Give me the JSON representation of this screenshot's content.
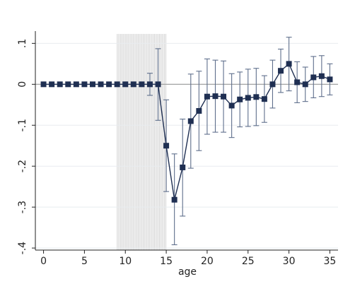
{
  "chart_data": {
    "type": "line",
    "xlabel": "age",
    "ylabel": "",
    "xlim": [
      -1,
      36
    ],
    "ylim": [
      -0.405,
      0.13
    ],
    "x_ticks": [
      0,
      5,
      10,
      15,
      20,
      25,
      30,
      35
    ],
    "x_tick_labels": [
      "0",
      "5",
      "10",
      "15",
      "20",
      "25",
      "30",
      "35"
    ],
    "y_ticks": [
      -0.4,
      -0.3,
      -0.2,
      -0.1,
      0,
      0.1
    ],
    "y_tick_labels": [
      "-.4",
      "-.3",
      "-.2",
      "-.1",
      "0",
      ".1"
    ],
    "grid": "horizontal",
    "reference_line_y": 0,
    "shaded_region": {
      "x_start": 9,
      "x_end": 15
    },
    "series": [
      {
        "marker": "square",
        "color": "#1f2f52",
        "points": [
          {
            "x": 0,
            "y": 0
          },
          {
            "x": 1,
            "y": 0
          },
          {
            "x": 2,
            "y": 0
          },
          {
            "x": 3,
            "y": 0
          },
          {
            "x": 4,
            "y": 0
          },
          {
            "x": 5,
            "y": 0
          },
          {
            "x": 6,
            "y": 0
          },
          {
            "x": 7,
            "y": 0
          },
          {
            "x": 8,
            "y": 0
          },
          {
            "x": 9,
            "y": 0
          },
          {
            "x": 10,
            "y": 0
          },
          {
            "x": 11,
            "y": 0
          },
          {
            "x": 12,
            "y": 0
          },
          {
            "x": 13,
            "y": 0,
            "lo": -0.027,
            "hi": 0.027
          },
          {
            "x": 14,
            "y": 0,
            "lo": -0.088,
            "hi": 0.087
          },
          {
            "x": 15,
            "y": -0.15,
            "lo": -0.262,
            "hi": -0.038
          },
          {
            "x": 16,
            "y": -0.282,
            "lo": -0.392,
            "hi": -0.17
          },
          {
            "x": 17,
            "y": -0.203,
            "lo": -0.322,
            "hi": -0.085
          },
          {
            "x": 18,
            "y": -0.09,
            "lo": -0.205,
            "hi": 0.025
          },
          {
            "x": 19,
            "y": -0.065,
            "lo": -0.162,
            "hi": 0.032
          },
          {
            "x": 20,
            "y": -0.03,
            "lo": -0.122,
            "hi": 0.062
          },
          {
            "x": 21,
            "y": -0.029,
            "lo": -0.117,
            "hi": 0.059
          },
          {
            "x": 22,
            "y": -0.03,
            "lo": -0.117,
            "hi": 0.057
          },
          {
            "x": 23,
            "y": -0.052,
            "lo": -0.13,
            "hi": 0.026
          },
          {
            "x": 24,
            "y": -0.037,
            "lo": -0.104,
            "hi": 0.03
          },
          {
            "x": 25,
            "y": -0.033,
            "lo": -0.103,
            "hi": 0.037
          },
          {
            "x": 26,
            "y": -0.031,
            "lo": -0.101,
            "hi": 0.039
          },
          {
            "x": 27,
            "y": -0.036,
            "lo": -0.093,
            "hi": 0.021
          },
          {
            "x": 28,
            "y": 0,
            "lo": -0.058,
            "hi": 0.059
          },
          {
            "x": 29,
            "y": 0.033,
            "lo": -0.02,
            "hi": 0.086
          },
          {
            "x": 30,
            "y": 0.05,
            "lo": -0.016,
            "hi": 0.115
          },
          {
            "x": 31,
            "y": 0.005,
            "lo": -0.045,
            "hi": 0.055
          },
          {
            "x": 32,
            "y": 0,
            "lo": -0.042,
            "hi": 0.042
          },
          {
            "x": 33,
            "y": 0.017,
            "lo": -0.033,
            "hi": 0.068
          },
          {
            "x": 34,
            "y": 0.02,
            "lo": -0.03,
            "hi": 0.07
          },
          {
            "x": 35,
            "y": 0.012,
            "lo": -0.026,
            "hi": 0.05
          }
        ]
      }
    ]
  }
}
